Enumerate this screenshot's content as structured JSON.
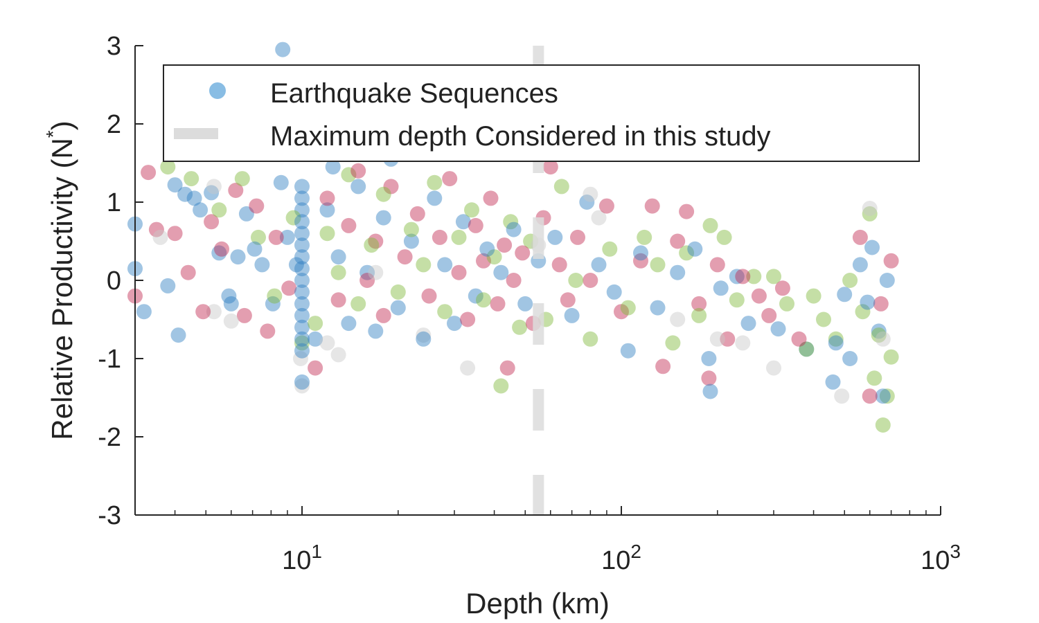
{
  "chart_data": {
    "type": "scatter",
    "xlabel": "Depth (km)",
    "ylabel": "Relative Productivity (N",
    "ylabel_superscript": "*",
    "ylabel_close": ")",
    "x_scale": "log",
    "xlim": [
      3,
      1000
    ],
    "ylim": [
      -3,
      3
    ],
    "x_ticks": [
      {
        "value": 10,
        "base": "10",
        "exp": "1"
      },
      {
        "value": 100,
        "base": "10",
        "exp": "2"
      },
      {
        "value": 1000,
        "base": "10",
        "exp": "3"
      }
    ],
    "y_ticks": [
      {
        "value": 3,
        "label": "3"
      },
      {
        "value": 2,
        "label": "2"
      },
      {
        "value": 1,
        "label": "1"
      },
      {
        "value": 0,
        "label": "0"
      },
      {
        "value": -1,
        "label": "-1"
      },
      {
        "value": -2,
        "label": "-2"
      },
      {
        "value": -3,
        "label": "-3"
      }
    ],
    "grid": false,
    "legend_position": "top-right",
    "reference_line": {
      "x": 55,
      "style": "dashed",
      "color": "#dcdcdc"
    },
    "legend": [
      {
        "label": "Earthquake Sequences",
        "marker": "circle",
        "color": "#4a9ad6"
      },
      {
        "label": "Maximum depth Considered in this study",
        "marker": "dash",
        "color": "#dcdcdc"
      }
    ],
    "series": [
      {
        "color": "#2f7fc1",
        "points": [
          [
            8.7,
            2.95
          ],
          [
            3.0,
            0.72
          ],
          [
            3.0,
            0.15
          ],
          [
            3.2,
            -0.4
          ],
          [
            3.8,
            -0.07
          ],
          [
            4.0,
            1.22
          ],
          [
            4.1,
            -0.7
          ],
          [
            4.3,
            1.1
          ],
          [
            4.6,
            1.05
          ],
          [
            4.8,
            0.9
          ],
          [
            5.2,
            1.12
          ],
          [
            5.5,
            0.35
          ],
          [
            5.9,
            -0.2
          ],
          [
            6.0,
            -0.3
          ],
          [
            6.3,
            0.3
          ],
          [
            6.7,
            0.85
          ],
          [
            7.1,
            0.4
          ],
          [
            7.5,
            0.2
          ],
          [
            8.1,
            -0.3
          ],
          [
            8.6,
            1.25
          ],
          [
            9.0,
            0.55
          ],
          [
            9.6,
            0.2
          ],
          [
            10.0,
            1.2
          ],
          [
            10.0,
            1.05
          ],
          [
            10.0,
            0.9
          ],
          [
            10.0,
            0.75
          ],
          [
            10.0,
            0.6
          ],
          [
            10.0,
            0.45
          ],
          [
            10.0,
            0.3
          ],
          [
            10.0,
            0.15
          ],
          [
            10.0,
            0.0
          ],
          [
            10.0,
            -0.15
          ],
          [
            10.0,
            -0.3
          ],
          [
            10.0,
            -0.45
          ],
          [
            10.0,
            -0.6
          ],
          [
            10.0,
            -0.75
          ],
          [
            10.0,
            -0.9
          ],
          [
            10.0,
            -1.3
          ],
          [
            11.0,
            -0.75
          ],
          [
            12.0,
            0.9
          ],
          [
            12.5,
            1.45
          ],
          [
            13.0,
            0.3
          ],
          [
            14.0,
            -0.55
          ],
          [
            15.0,
            1.2
          ],
          [
            16.0,
            0.1
          ],
          [
            17.0,
            -0.65
          ],
          [
            18.0,
            0.8
          ],
          [
            19.0,
            1.55
          ],
          [
            20.0,
            -0.35
          ],
          [
            22.0,
            0.5
          ],
          [
            24.0,
            -0.75
          ],
          [
            26.0,
            1.05
          ],
          [
            28.0,
            0.2
          ],
          [
            30.0,
            -0.55
          ],
          [
            32.0,
            0.75
          ],
          [
            35.0,
            -0.2
          ],
          [
            38.0,
            0.4
          ],
          [
            42.0,
            0.1
          ],
          [
            46.0,
            0.65
          ],
          [
            50.0,
            -0.3
          ],
          [
            55.0,
            0.25
          ],
          [
            62.0,
            0.55
          ],
          [
            70.0,
            -0.45
          ],
          [
            78.0,
            1.0
          ],
          [
            85.0,
            0.2
          ],
          [
            95.0,
            -0.15
          ],
          [
            105.0,
            -0.9
          ],
          [
            115.0,
            0.35
          ],
          [
            130.0,
            -0.35
          ],
          [
            150.0,
            0.1
          ],
          [
            170.0,
            0.4
          ],
          [
            188.0,
            -1.0
          ],
          [
            190.0,
            -1.42
          ],
          [
            205.0,
            -0.1
          ],
          [
            230.0,
            0.05
          ],
          [
            250.0,
            -0.55
          ],
          [
            310.0,
            -0.62
          ],
          [
            380.0,
            -0.88
          ],
          [
            460.0,
            -1.3
          ],
          [
            470.0,
            -0.8
          ],
          [
            500.0,
            -0.18
          ],
          [
            520.0,
            -1.0
          ],
          [
            560.0,
            0.2
          ],
          [
            590.0,
            -0.28
          ],
          [
            610.0,
            0.42
          ],
          [
            640.0,
            -0.65
          ],
          [
            660.0,
            -1.48
          ],
          [
            680.0,
            0.0
          ]
        ]
      },
      {
        "color": "#c2294f",
        "points": [
          [
            3.0,
            -0.2
          ],
          [
            3.3,
            1.38
          ],
          [
            3.5,
            0.65
          ],
          [
            4.0,
            0.6
          ],
          [
            4.4,
            0.1
          ],
          [
            4.9,
            -0.4
          ],
          [
            5.2,
            0.75
          ],
          [
            5.6,
            0.4
          ],
          [
            6.2,
            1.15
          ],
          [
            6.6,
            -0.45
          ],
          [
            7.2,
            0.95
          ],
          [
            7.8,
            -0.65
          ],
          [
            8.3,
            0.55
          ],
          [
            9.1,
            -0.1
          ],
          [
            11.0,
            -1.12
          ],
          [
            12.0,
            1.05
          ],
          [
            13.0,
            -0.25
          ],
          [
            14.0,
            0.7
          ],
          [
            15.0,
            1.4
          ],
          [
            16.0,
            0.0
          ],
          [
            17.0,
            0.5
          ],
          [
            18.0,
            -0.45
          ],
          [
            19.0,
            1.2
          ],
          [
            21.0,
            0.3
          ],
          [
            23.0,
            0.85
          ],
          [
            25.0,
            -0.2
          ],
          [
            27.0,
            0.55
          ],
          [
            29.0,
            1.3
          ],
          [
            31.0,
            0.1
          ],
          [
            33.0,
            -0.5
          ],
          [
            35.0,
            0.7
          ],
          [
            37.0,
            0.25
          ],
          [
            39.0,
            1.05
          ],
          [
            41.0,
            -0.3
          ],
          [
            43.0,
            0.45
          ],
          [
            44.0,
            -1.12
          ],
          [
            46.0,
            0.0
          ],
          [
            49.0,
            0.35
          ],
          [
            53.0,
            -0.55
          ],
          [
            57.0,
            0.8
          ],
          [
            60.0,
            1.45
          ],
          [
            64.0,
            0.2
          ],
          [
            68.0,
            -0.25
          ],
          [
            73.0,
            0.55
          ],
          [
            80.0,
            0.0
          ],
          [
            90.0,
            0.95
          ],
          [
            100.0,
            -0.4
          ],
          [
            115.0,
            0.25
          ],
          [
            125.0,
            0.95
          ],
          [
            135.0,
            -1.1
          ],
          [
            150.0,
            0.5
          ],
          [
            160.0,
            0.88
          ],
          [
            175.0,
            -0.3
          ],
          [
            188.0,
            -1.25
          ],
          [
            200.0,
            0.2
          ],
          [
            215.0,
            -0.75
          ],
          [
            240.0,
            0.05
          ],
          [
            270.0,
            -0.2
          ],
          [
            290.0,
            -0.45
          ],
          [
            320.0,
            -0.1
          ],
          [
            360.0,
            -0.75
          ],
          [
            560.0,
            0.55
          ],
          [
            600.0,
            -1.48
          ],
          [
            650.0,
            -0.3
          ],
          [
            700.0,
            0.25
          ]
        ]
      },
      {
        "color": "#7fb83a",
        "points": [
          [
            3.8,
            1.45
          ],
          [
            4.5,
            1.3
          ],
          [
            5.5,
            0.9
          ],
          [
            6.5,
            1.3
          ],
          [
            7.3,
            0.55
          ],
          [
            8.2,
            -0.2
          ],
          [
            9.4,
            0.8
          ],
          [
            10.0,
            -0.8
          ],
          [
            11.0,
            -0.55
          ],
          [
            12.0,
            0.6
          ],
          [
            13.0,
            0.1
          ],
          [
            14.0,
            1.35
          ],
          [
            15.0,
            -0.3
          ],
          [
            16.5,
            0.45
          ],
          [
            18.0,
            1.1
          ],
          [
            20.0,
            -0.15
          ],
          [
            22.0,
            0.65
          ],
          [
            24.0,
            0.2
          ],
          [
            26.0,
            1.25
          ],
          [
            28.0,
            -0.4
          ],
          [
            31.0,
            0.55
          ],
          [
            34.0,
            0.9
          ],
          [
            37.0,
            -0.25
          ],
          [
            40.0,
            0.3
          ],
          [
            42.0,
            -1.35
          ],
          [
            45.0,
            0.75
          ],
          [
            48.0,
            -0.6
          ],
          [
            52.0,
            0.5
          ],
          [
            58.0,
            -0.5
          ],
          [
            65.0,
            1.2
          ],
          [
            72.0,
            0.0
          ],
          [
            80.0,
            -0.75
          ],
          [
            92.0,
            0.4
          ],
          [
            105.0,
            -0.35
          ],
          [
            118.0,
            0.55
          ],
          [
            130.0,
            0.2
          ],
          [
            145.0,
            -0.8
          ],
          [
            160.0,
            0.35
          ],
          [
            175.0,
            -0.45
          ],
          [
            190.0,
            0.7
          ],
          [
            210.0,
            0.55
          ],
          [
            230.0,
            -0.25
          ],
          [
            260.0,
            0.05
          ],
          [
            300.0,
            0.05
          ],
          [
            330.0,
            -0.3
          ],
          [
            380.0,
            -0.88
          ],
          [
            400.0,
            -0.2
          ],
          [
            430.0,
            -0.5
          ],
          [
            470.0,
            -0.75
          ],
          [
            520.0,
            0.0
          ],
          [
            570.0,
            -0.4
          ],
          [
            600.0,
            0.85
          ],
          [
            620.0,
            -1.25
          ],
          [
            640.0,
            -0.7
          ],
          [
            660.0,
            -1.85
          ],
          [
            680.0,
            -1.48
          ],
          [
            700.0,
            -0.98
          ]
        ]
      },
      {
        "color": "#c8c8c8",
        "points": [
          [
            3.6,
            0.55
          ],
          [
            5.3,
            1.2
          ],
          [
            5.3,
            -0.4
          ],
          [
            6.0,
            -0.52
          ],
          [
            9.9,
            -1.0
          ],
          [
            10.0,
            -1.35
          ],
          [
            12.0,
            -0.8
          ],
          [
            13.0,
            -0.95
          ],
          [
            17.0,
            0.1
          ],
          [
            24.0,
            -0.7
          ],
          [
            33.0,
            -1.12
          ],
          [
            55.0,
            0.45
          ],
          [
            80.0,
            1.1
          ],
          [
            85.0,
            0.8
          ],
          [
            150.0,
            -0.5
          ],
          [
            200.0,
            -0.75
          ],
          [
            240.0,
            -0.8
          ],
          [
            300.0,
            -1.12
          ],
          [
            490.0,
            -1.48
          ],
          [
            600.0,
            0.92
          ],
          [
            660.0,
            -0.75
          ]
        ]
      }
    ]
  }
}
